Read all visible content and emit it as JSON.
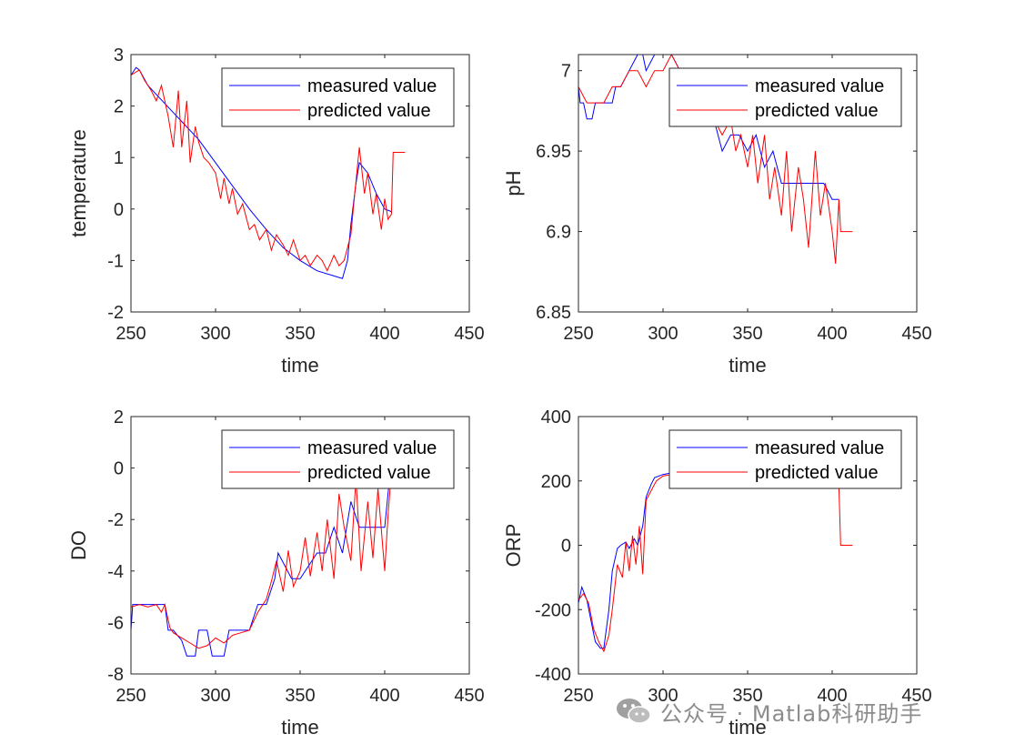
{
  "watermark": {
    "text": "公众号 · Matlab科研助手",
    "icon": "wechat-icon"
  },
  "colors": {
    "measured": "#0000ff",
    "predicted": "#ff0000",
    "axes": "#262626"
  },
  "chart_data": [
    {
      "type": "line",
      "id": "temperature",
      "xlabel": "time",
      "ylabel": "temperature",
      "xlim": [
        250,
        450
      ],
      "ylim": [
        -2,
        3
      ],
      "xticks": [
        "250",
        "300",
        "350",
        "400",
        "450"
      ],
      "yticks": [
        "-2",
        "-1",
        "0",
        "1",
        "2",
        "3"
      ],
      "legend": {
        "position": "top-right",
        "entries": [
          "measured value",
          "predicted value"
        ]
      },
      "series": [
        {
          "name": "measured value",
          "x": [
            250,
            253,
            255,
            260,
            270,
            280,
            290,
            300,
            310,
            320,
            330,
            340,
            350,
            360,
            370,
            375,
            378,
            380,
            383,
            385,
            390,
            395,
            400,
            404
          ],
          "y": [
            2.6,
            2.75,
            2.7,
            2.4,
            2.05,
            1.7,
            1.35,
            0.9,
            0.45,
            0.0,
            -0.4,
            -0.75,
            -1.0,
            -1.2,
            -1.3,
            -1.35,
            -1.0,
            -0.3,
            0.5,
            0.9,
            0.7,
            0.3,
            0.0,
            -0.05
          ]
        },
        {
          "name": "predicted value",
          "x": [
            250,
            255,
            258,
            262,
            265,
            268,
            272,
            275,
            278,
            280,
            283,
            285,
            288,
            290,
            293,
            296,
            300,
            303,
            305,
            308,
            310,
            313,
            316,
            320,
            323,
            326,
            330,
            333,
            336,
            340,
            343,
            346,
            350,
            353,
            356,
            360,
            363,
            366,
            370,
            373,
            376,
            380,
            382,
            385,
            388,
            390,
            393,
            395,
            398,
            400,
            402,
            404,
            405,
            412
          ],
          "y": [
            2.6,
            2.7,
            2.5,
            2.3,
            2.1,
            2.4,
            1.8,
            1.2,
            2.3,
            1.2,
            2.1,
            0.9,
            1.6,
            1.3,
            1.0,
            0.9,
            0.7,
            0.2,
            0.6,
            0.1,
            0.4,
            -0.1,
            0.1,
            -0.4,
            -0.3,
            -0.6,
            -0.4,
            -0.8,
            -0.5,
            -0.7,
            -0.9,
            -0.6,
            -1.0,
            -0.9,
            -1.1,
            -0.9,
            -1.0,
            -1.2,
            -0.9,
            -1.1,
            -1.0,
            -0.5,
            0.2,
            1.2,
            0.3,
            0.7,
            -0.1,
            0.3,
            -0.4,
            0.2,
            -0.2,
            -0.1,
            1.1,
            1.1
          ]
        }
      ]
    },
    {
      "type": "line",
      "id": "ph",
      "xlabel": "time",
      "ylabel": "pH",
      "xlim": [
        250,
        450
      ],
      "ylim": [
        6.85,
        7.01
      ],
      "xticks": [
        "250",
        "300",
        "350",
        "400",
        "450"
      ],
      "yticks": [
        "6.85",
        "6.9",
        "6.95",
        "7"
      ],
      "legend": {
        "position": "top-right",
        "entries": [
          "measured value",
          "predicted value"
        ]
      },
      "series": [
        {
          "name": "measured value",
          "x": [
            250,
            251,
            253,
            255,
            258,
            260,
            265,
            270,
            272,
            275,
            280,
            285,
            288,
            290,
            295,
            300,
            305,
            310,
            315,
            320,
            330,
            335,
            340,
            345,
            350,
            355,
            360,
            365,
            370,
            375,
            380,
            385,
            390,
            395,
            400,
            404
          ],
          "y": [
            6.99,
            6.98,
            6.98,
            6.97,
            6.97,
            6.98,
            6.98,
            6.98,
            6.99,
            6.99,
            7.0,
            7.01,
            7.01,
            7.0,
            7.01,
            7.01,
            7.01,
            7.0,
            6.99,
            6.99,
            6.97,
            6.95,
            6.96,
            6.96,
            6.95,
            6.96,
            6.94,
            6.95,
            6.93,
            6.93,
            6.93,
            6.93,
            6.93,
            6.93,
            6.92,
            6.92
          ]
        },
        {
          "name": "predicted value",
          "x": [
            250,
            255,
            260,
            265,
            270,
            275,
            280,
            285,
            290,
            295,
            300,
            305,
            310,
            315,
            320,
            330,
            335,
            340,
            343,
            346,
            350,
            353,
            356,
            360,
            363,
            366,
            370,
            373,
            376,
            380,
            383,
            386,
            390,
            393,
            396,
            400,
            402,
            404,
            405,
            412
          ],
          "y": [
            6.99,
            6.98,
            6.98,
            6.98,
            6.99,
            6.99,
            7.0,
            7.0,
            6.99,
            7.0,
            7.0,
            7.01,
            7.0,
            7.0,
            6.99,
            6.97,
            6.96,
            6.97,
            6.95,
            6.96,
            6.94,
            6.96,
            6.93,
            6.96,
            6.92,
            6.94,
            6.91,
            6.95,
            6.9,
            6.94,
            6.92,
            6.89,
            6.95,
            6.91,
            6.93,
            6.9,
            6.88,
            6.92,
            6.9,
            6.9
          ]
        }
      ]
    },
    {
      "type": "line",
      "id": "do",
      "xlabel": "time",
      "ylabel": "DO",
      "xlim": [
        250,
        450
      ],
      "ylim": [
        -8,
        2
      ],
      "xticks": [
        "250",
        "300",
        "350",
        "400",
        "450"
      ],
      "yticks": [
        "-8",
        "-6",
        "-4",
        "-2",
        "0",
        "2"
      ],
      "legend": {
        "position": "top-right",
        "entries": [
          "measured value",
          "predicted value"
        ]
      },
      "series": [
        {
          "name": "measured value",
          "x": [
            250,
            251,
            260,
            270,
            272,
            275,
            280,
            283,
            285,
            288,
            290,
            295,
            298,
            300,
            305,
            308,
            310,
            320,
            325,
            330,
            335,
            337,
            345,
            350,
            360,
            365,
            370,
            375,
            380,
            385,
            390,
            395,
            400,
            403,
            405
          ],
          "y": [
            -6.3,
            -5.3,
            -5.3,
            -5.3,
            -6.3,
            -6.3,
            -6.7,
            -7.3,
            -7.3,
            -7.3,
            -6.3,
            -6.3,
            -7.3,
            -7.3,
            -7.3,
            -6.3,
            -6.3,
            -6.3,
            -5.3,
            -5.3,
            -4.3,
            -3.3,
            -4.3,
            -4.3,
            -3.3,
            -3.3,
            -2.3,
            -3.3,
            -1.3,
            -2.3,
            -2.3,
            -2.3,
            -2.3,
            -0.3,
            0.7
          ]
        },
        {
          "name": "predicted value",
          "x": [
            250,
            255,
            260,
            265,
            268,
            270,
            273,
            275,
            280,
            285,
            290,
            295,
            300,
            305,
            310,
            315,
            320,
            325,
            330,
            333,
            336,
            340,
            343,
            346,
            350,
            353,
            356,
            360,
            363,
            366,
            370,
            373,
            376,
            380,
            383,
            386,
            390,
            393,
            396,
            400,
            402,
            405
          ],
          "y": [
            -5.4,
            -5.3,
            -5.4,
            -5.3,
            -5.6,
            -5.3,
            -6.2,
            -6.4,
            -6.6,
            -6.8,
            -7.0,
            -6.9,
            -6.6,
            -6.8,
            -6.5,
            -6.4,
            -6.3,
            -5.6,
            -5.1,
            -4.4,
            -3.6,
            -4.8,
            -3.2,
            -4.6,
            -4.0,
            -2.7,
            -4.2,
            -2.5,
            -4.0,
            -2.0,
            -4.3,
            -1.0,
            -2.3,
            -3.6,
            -0.4,
            -4.0,
            -1.3,
            -3.5,
            -0.8,
            -4.0,
            -1.8,
            0.7
          ]
        }
      ]
    },
    {
      "type": "line",
      "id": "orp",
      "xlabel": "time",
      "ylabel": "ORP",
      "xlim": [
        250,
        450
      ],
      "ylim": [
        -400,
        400
      ],
      "xticks": [
        "250",
        "300",
        "350",
        "400",
        "450"
      ],
      "yticks": [
        "-400",
        "-200",
        "0",
        "200",
        "400"
      ],
      "legend": {
        "position": "top-right",
        "entries": [
          "measured value",
          "predicted value"
        ]
      },
      "series": [
        {
          "name": "measured value",
          "x": [
            250,
            252,
            255,
            258,
            260,
            263,
            265,
            268,
            270,
            273,
            275,
            278,
            280,
            283,
            285,
            288,
            290,
            293,
            295,
            300,
            305,
            308
          ],
          "y": [
            -180,
            -130,
            -170,
            -250,
            -300,
            -320,
            -320,
            -200,
            -80,
            -10,
            0,
            10,
            -10,
            20,
            0,
            60,
            150,
            190,
            210,
            220,
            225,
            225
          ]
        },
        {
          "name": "predicted value",
          "x": [
            250,
            253,
            256,
            259,
            262,
            265,
            268,
            270,
            273,
            276,
            278,
            280,
            282,
            284,
            286,
            288,
            290,
            293,
            296,
            300,
            305,
            308,
            404,
            405,
            412
          ],
          "y": [
            -170,
            -150,
            -180,
            -260,
            -300,
            -330,
            -280,
            -200,
            -60,
            -100,
            10,
            -80,
            30,
            -60,
            60,
            -90,
            140,
            170,
            200,
            215,
            220,
            225,
            180,
            0,
            0
          ]
        }
      ]
    }
  ]
}
